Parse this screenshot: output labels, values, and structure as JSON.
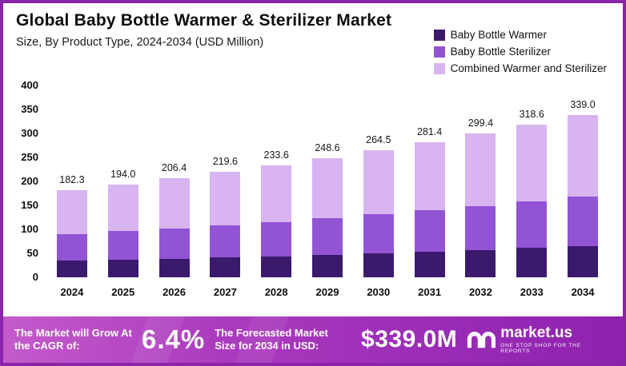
{
  "header": {
    "title": "Global Baby Bottle Warmer & Sterilizer Market",
    "subtitle": "Size, By Product Type, 2024-2034 (USD Million)"
  },
  "chart_data": {
    "type": "bar",
    "stacked": true,
    "title": "Global Baby Bottle Warmer & Sterilizer Market",
    "subtitle": "Size, By Product Type, 2024-2034 (USD Million)",
    "categories": [
      "2024",
      "2025",
      "2026",
      "2027",
      "2028",
      "2029",
      "2030",
      "2031",
      "2032",
      "2033",
      "2034"
    ],
    "series": [
      {
        "name": "Baby Bottle Warmer",
        "color": "#3b1a6e",
        "values": [
          35,
          37,
          39,
          42,
          44,
          47,
          50,
          53,
          57,
          61,
          65
        ]
      },
      {
        "name": "Baby Bottle Sterilizer",
        "color": "#9254d4",
        "values": [
          55,
          60,
          63,
          66,
          71,
          76,
          81,
          87,
          92,
          97,
          103
        ]
      },
      {
        "name": "Combined Warmer and Sterilizer",
        "color": "#d8b4f0",
        "values": [
          92.3,
          97.0,
          104.4,
          111.6,
          118.6,
          125.6,
          133.5,
          141.4,
          150.4,
          160.6,
          171.0
        ]
      }
    ],
    "totals": [
      "182.3",
      "194.0",
      "206.4",
      "219.6",
      "233.6",
      "248.6",
      "264.5",
      "281.4",
      "299.4",
      "318.6",
      "339.0"
    ],
    "ylim": [
      0,
      400
    ],
    "yticks": [
      0,
      50,
      100,
      150,
      200,
      250,
      300,
      350,
      400
    ],
    "xlabel": "",
    "ylabel": "",
    "grid": false,
    "legend_position": "top-right"
  },
  "footer": {
    "cagr_label": "The Market will Grow At the CAGR of:",
    "cagr_value": "6.4%",
    "forecast_label": "The Forecasted Market Size for 2034 in USD:",
    "forecast_value": "$339.0M",
    "brand": "market.us",
    "brand_tagline": "One Stop Shop For The Reports"
  },
  "colors": {
    "frame_border": "#8a24a8",
    "banner_gradient_start": "#c45bcb",
    "banner_gradient_end": "#8e23ad"
  }
}
